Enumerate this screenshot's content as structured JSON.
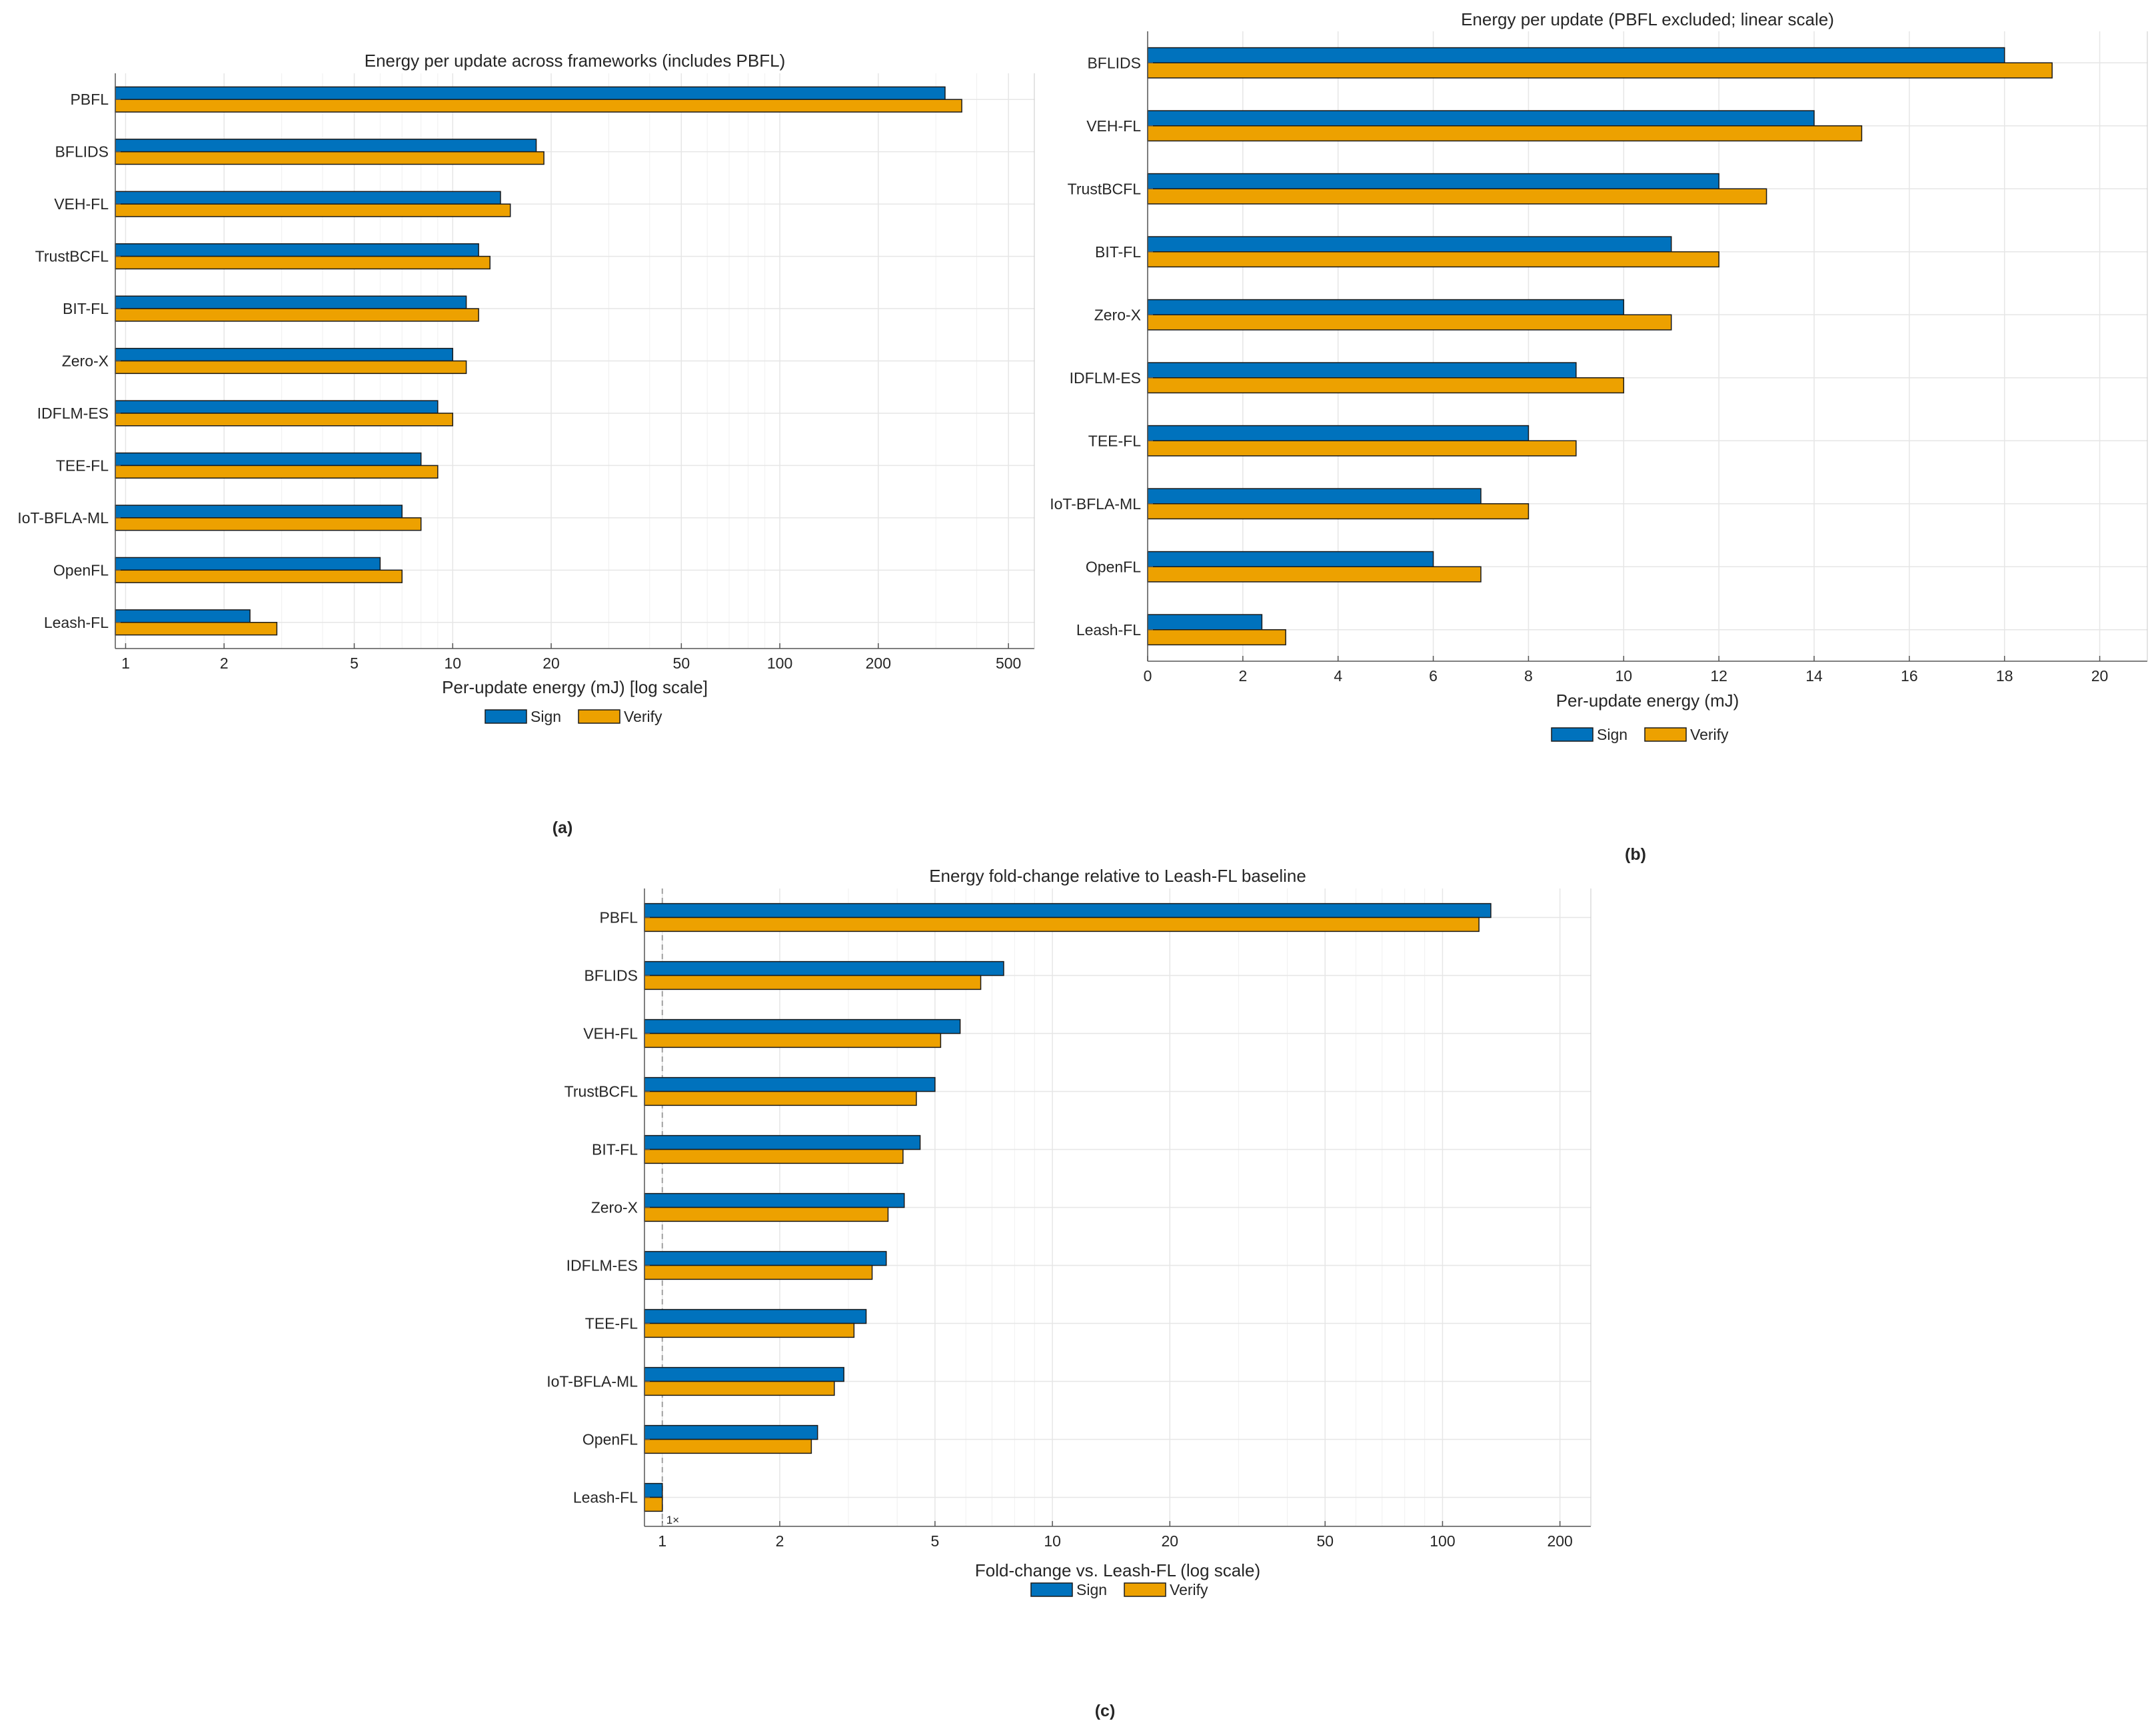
{
  "colors": {
    "sign": "#0072BD",
    "verify": "#EDA100",
    "grid": "#e6e6e6",
    "axis": "#555555"
  },
  "chart_data": [
    {
      "id": "a",
      "type": "bar",
      "orientation": "horizontal",
      "scale": "log",
      "title": "Energy per update across frameworks (includes PBFL)",
      "xlabel": "Per-update energy (mJ)  [log scale]",
      "panel_label": "(a)",
      "xlim": [
        0.93,
        600
      ],
      "ticks": [
        1,
        2,
        5,
        10,
        20,
        50,
        100,
        200,
        500
      ],
      "tick_labels": [
        "1",
        "2",
        "5",
        "10",
        "20",
        "50",
        "100",
        "200",
        "500"
      ],
      "categories": [
        "PBFL",
        "BFLIDS",
        "VEH-FL",
        "TrustBCFL",
        "BIT-FL",
        "Zero-X",
        "IDFLM-ES",
        "TEE-FL",
        "IoT-BFLA-ML",
        "OpenFL",
        "Leash-FL"
      ],
      "series": [
        {
          "name": "Sign",
          "values": [
            320,
            18,
            14,
            12,
            11,
            10,
            9,
            8,
            7,
            6,
            2.4
          ]
        },
        {
          "name": "Verify",
          "values": [
            360,
            19,
            15,
            13,
            12,
            11,
            10,
            9,
            8,
            7,
            2.9
          ]
        }
      ],
      "legend": [
        "Sign",
        "Verify"
      ]
    },
    {
      "id": "b",
      "type": "bar",
      "orientation": "horizontal",
      "scale": "linear",
      "title": "Energy per update (PBFL excluded; linear scale)",
      "xlabel": "Per-update energy (mJ)",
      "panel_label": "(b)",
      "xlim": [
        0,
        21
      ],
      "ticks": [
        0,
        2,
        4,
        6,
        8,
        10,
        12,
        14,
        16,
        18,
        20
      ],
      "tick_labels": [
        "0",
        "2",
        "4",
        "6",
        "8",
        "10",
        "12",
        "14",
        "16",
        "18",
        "20"
      ],
      "categories": [
        "BFLIDS",
        "VEH-FL",
        "TrustBCFL",
        "BIT-FL",
        "Zero-X",
        "IDFLM-ES",
        "TEE-FL",
        "IoT-BFLA-ML",
        "OpenFL",
        "Leash-FL"
      ],
      "series": [
        {
          "name": "Sign",
          "values": [
            18,
            14,
            12,
            11,
            10,
            9,
            8,
            7,
            6,
            2.4
          ]
        },
        {
          "name": "Verify",
          "values": [
            19,
            15,
            13,
            12,
            11,
            10,
            9,
            8,
            7,
            2.9
          ]
        }
      ],
      "legend": [
        "Sign",
        "Verify"
      ]
    },
    {
      "id": "c",
      "type": "bar",
      "orientation": "horizontal",
      "scale": "log",
      "title": "Energy fold-change relative to Leash-FL baseline",
      "xlabel": "Fold-change vs. Leash-FL (log scale)",
      "panel_label": "(c)",
      "xlim": [
        0.9,
        240
      ],
      "ticks": [
        1,
        2,
        5,
        10,
        20,
        50,
        100,
        200
      ],
      "tick_labels": [
        "1",
        "2",
        "5",
        "10",
        "20",
        "50",
        "100",
        "200"
      ],
      "reference_line": 1,
      "annotation": "1×",
      "categories": [
        "PBFL",
        "BFLIDS",
        "VEH-FL",
        "TrustBCFL",
        "BIT-FL",
        "Zero-X",
        "IDFLM-ES",
        "TEE-FL",
        "IoT-BFLA-ML",
        "OpenFL",
        "Leash-FL"
      ],
      "series": [
        {
          "name": "Sign",
          "values": [
            133,
            7.5,
            5.8,
            5.0,
            4.58,
            4.17,
            3.75,
            3.33,
            2.92,
            2.5,
            1
          ]
        },
        {
          "name": "Verify",
          "values": [
            124,
            6.55,
            5.17,
            4.48,
            4.14,
            3.79,
            3.45,
            3.1,
            2.76,
            2.41,
            1
          ]
        }
      ],
      "legend": [
        "Sign",
        "Verify"
      ]
    }
  ]
}
